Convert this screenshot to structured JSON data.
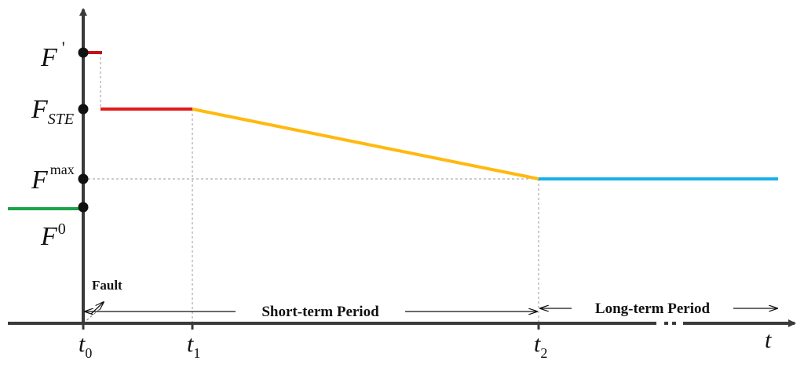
{
  "diagram": {
    "y_labels": {
      "f_prime": {
        "base": "F",
        "sup": "'"
      },
      "f_ste": {
        "base": "F",
        "sub": "STE"
      },
      "f_max": {
        "base": "F",
        "sup": "max"
      },
      "f_zero": {
        "base": "F",
        "sup": "0"
      }
    },
    "x_labels": {
      "t0": {
        "base": "t",
        "sub": "0"
      },
      "t1": {
        "base": "t",
        "sub": "1"
      },
      "t2": {
        "base": "t",
        "sub": "2"
      },
      "t": {
        "base": "t"
      }
    },
    "annotations": {
      "fault": "Fault",
      "short_term": "Short-term Period",
      "long_term": "Long-term Period"
    },
    "colors": {
      "axis": "#3a3a3a",
      "pre_fault": "#1aa34a",
      "emergency": "#e01b1b",
      "emergency_dark": "#c0141a",
      "decline": "#ffb90f",
      "long_term": "#1ab0e8",
      "markers": "#111111"
    }
  }
}
